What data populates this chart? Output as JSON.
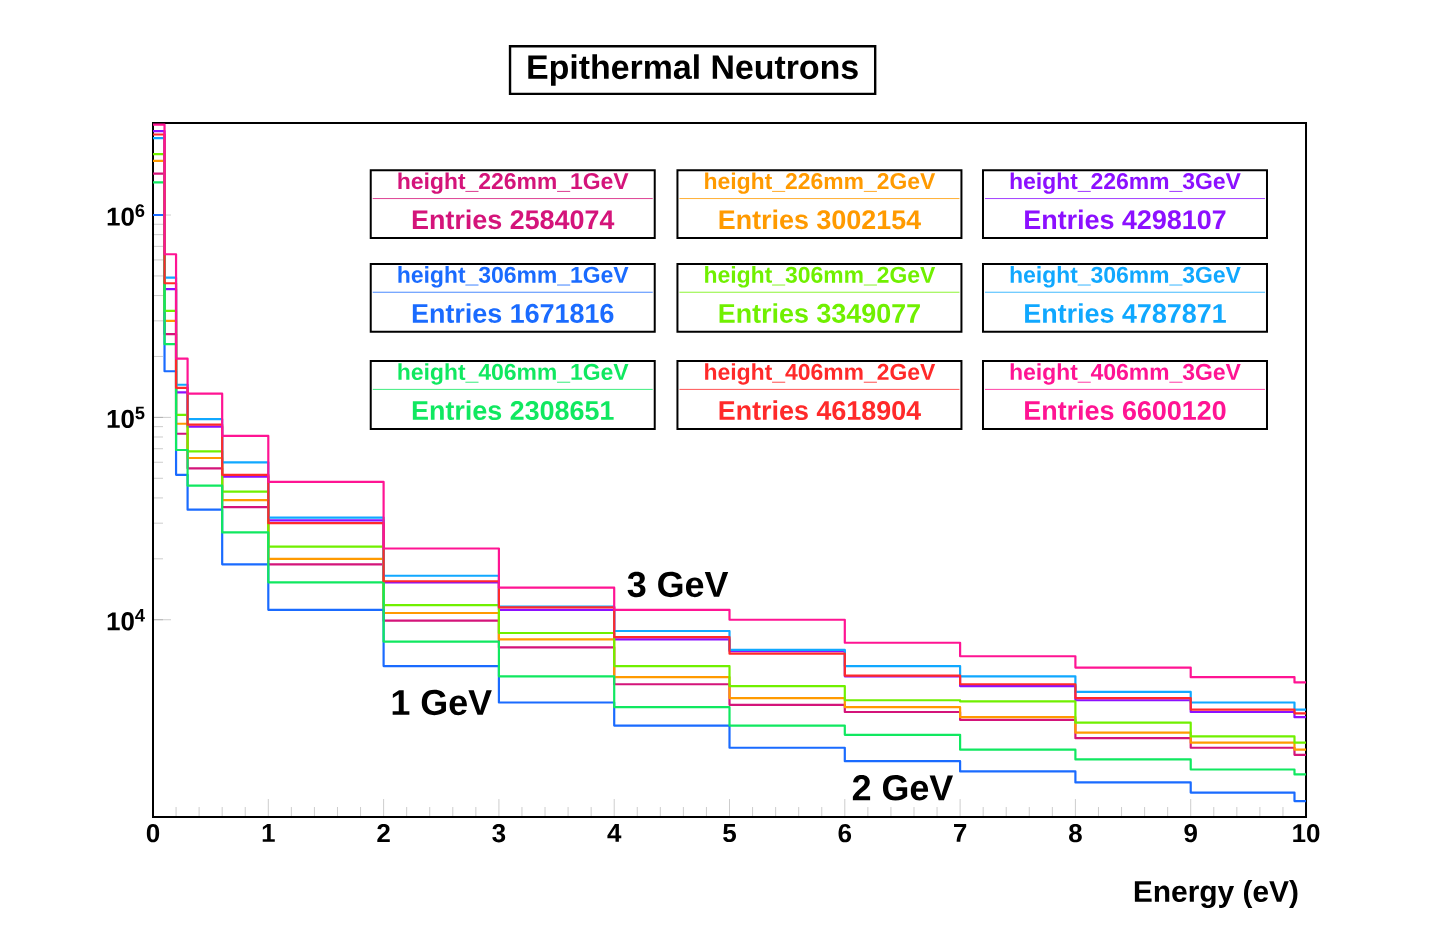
{
  "chart_data": {
    "type": "step",
    "title": "Epithermal Neutrons",
    "xlabel": "Energy (eV)",
    "x": [
      0,
      0.1,
      0.2,
      0.3,
      0.6,
      1,
      2,
      3,
      4,
      5,
      6,
      7,
      8,
      9,
      9.9,
      10
    ],
    "series": [
      {
        "name": "height_226mm_1GeV",
        "color": "#d4147a",
        "values": [
          1600000,
          258000,
          83000,
          56000,
          36000,
          18800,
          9900,
          7300,
          4800,
          3800,
          3500,
          3200,
          2600,
          2330,
          2150,
          2150
        ]
      },
      {
        "name": "height_226mm_2GeV",
        "color": "#ff9a00",
        "values": [
          1850000,
          300000,
          93000,
          63000,
          39000,
          20000,
          10800,
          8000,
          5200,
          4100,
          3700,
          3300,
          2770,
          2470,
          2280,
          2280
        ]
      },
      {
        "name": "height_226mm_3GeV",
        "color": "#8c10ff",
        "values": [
          2600000,
          430000,
          133000,
          90000,
          51000,
          31000,
          15300,
          11200,
          8000,
          7000,
          5250,
          4700,
          4000,
          3500,
          3300,
          3300
        ]
      },
      {
        "name": "height_306mm_1GeV",
        "color": "#1a6bff",
        "values": [
          1000000,
          169000,
          52000,
          35000,
          18800,
          11200,
          5900,
          3900,
          3000,
          2330,
          2000,
          1780,
          1570,
          1400,
          1270,
          1270
        ]
      },
      {
        "name": "height_306mm_2GeV",
        "color": "#70f000",
        "values": [
          2000000,
          336000,
          103000,
          68000,
          43000,
          23000,
          11800,
          8600,
          5900,
          4700,
          4000,
          3950,
          3100,
          2650,
          2470,
          2470
        ]
      },
      {
        "name": "height_306mm_3GeV",
        "color": "#10a8ff",
        "values": [
          2400000,
          490000,
          145000,
          98000,
          60000,
          32000,
          16500,
          11600,
          8800,
          7100,
          5900,
          5250,
          4400,
          3900,
          3600,
          3600
        ]
      },
      {
        "name": "height_406mm_1GeV",
        "color": "#10e860",
        "values": [
          1450000,
          230000,
          69000,
          46000,
          27000,
          15300,
          7800,
          5250,
          3700,
          3000,
          2700,
          2280,
          2040,
          1820,
          1720,
          1720
        ]
      },
      {
        "name": "height_406mm_2GeV",
        "color": "#ff2a2a",
        "values": [
          2500000,
          460000,
          140000,
          92000,
          52000,
          30000,
          15500,
          11500,
          8200,
          6800,
          5300,
          4800,
          4100,
          3600,
          3450,
          3450
        ]
      },
      {
        "name": "height_406mm_3GeV",
        "color": "#ff1493",
        "values": [
          2800000,
          640000,
          195000,
          131000,
          81000,
          48000,
          22500,
          14400,
          11200,
          10000,
          7700,
          6600,
          5800,
          5200,
          4900,
          4900
        ]
      }
    ],
    "annotations": [
      "Entries 2584074",
      "Entries 3002154",
      "Entries 4298107",
      "Entries 1671816",
      "Entries 3349077",
      "Entries 4787871",
      "Entries 2308651",
      "Entries 4618904",
      "Entries 6600120",
      "1 GeV",
      "3 GeV",
      "2 GeV"
    ],
    "xlim": [
      0,
      10
    ],
    "ylim": [
      1060,
      2850000
    ],
    "log": "y",
    "xticks": [
      0,
      1,
      2,
      3,
      4,
      5,
      6,
      7,
      8,
      9,
      10
    ],
    "yticks": [
      {
        "value": 10000,
        "label": "10$^{4}$"
      },
      {
        "value": 100000,
        "label": "10$^{5}$"
      },
      {
        "value": 1000000,
        "label": "10$^{6}$"
      }
    ],
    "legend": "top",
    "marker": "none",
    "line_style": "solid"
  }
}
